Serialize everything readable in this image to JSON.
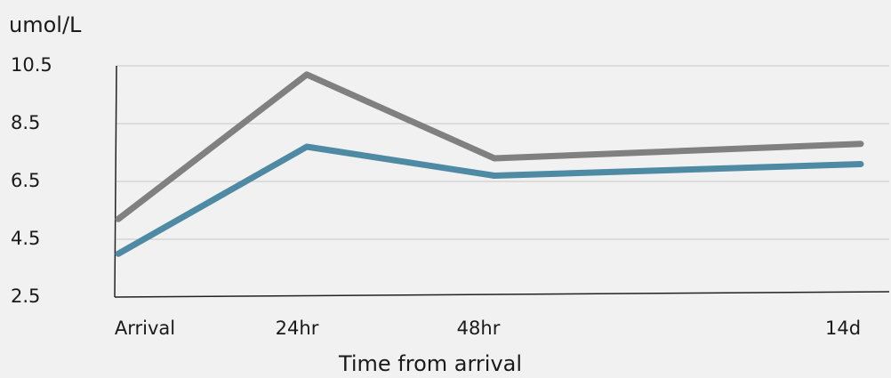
{
  "chart_data": {
    "type": "line",
    "title": "",
    "ylabel": "umol/L",
    "xlabel": "Time from arrival",
    "categories": [
      "Arrival",
      "24hr",
      "48hr",
      "14d"
    ],
    "yticks": [
      2.5,
      4.5,
      6.5,
      8.5,
      10.5
    ],
    "ytick_labels": [
      "2.5",
      "4.5",
      "6.5",
      "8.5",
      "10.5"
    ],
    "ylim": [
      2.5,
      10.5
    ],
    "grid": true,
    "series": [
      {
        "values": [
          5.2,
          10.2,
          7.3,
          7.8
        ],
        "color": "#808080"
      },
      {
        "values": [
          4.0,
          7.7,
          6.7,
          7.1
        ],
        "color": "#4e8aa3"
      }
    ]
  }
}
